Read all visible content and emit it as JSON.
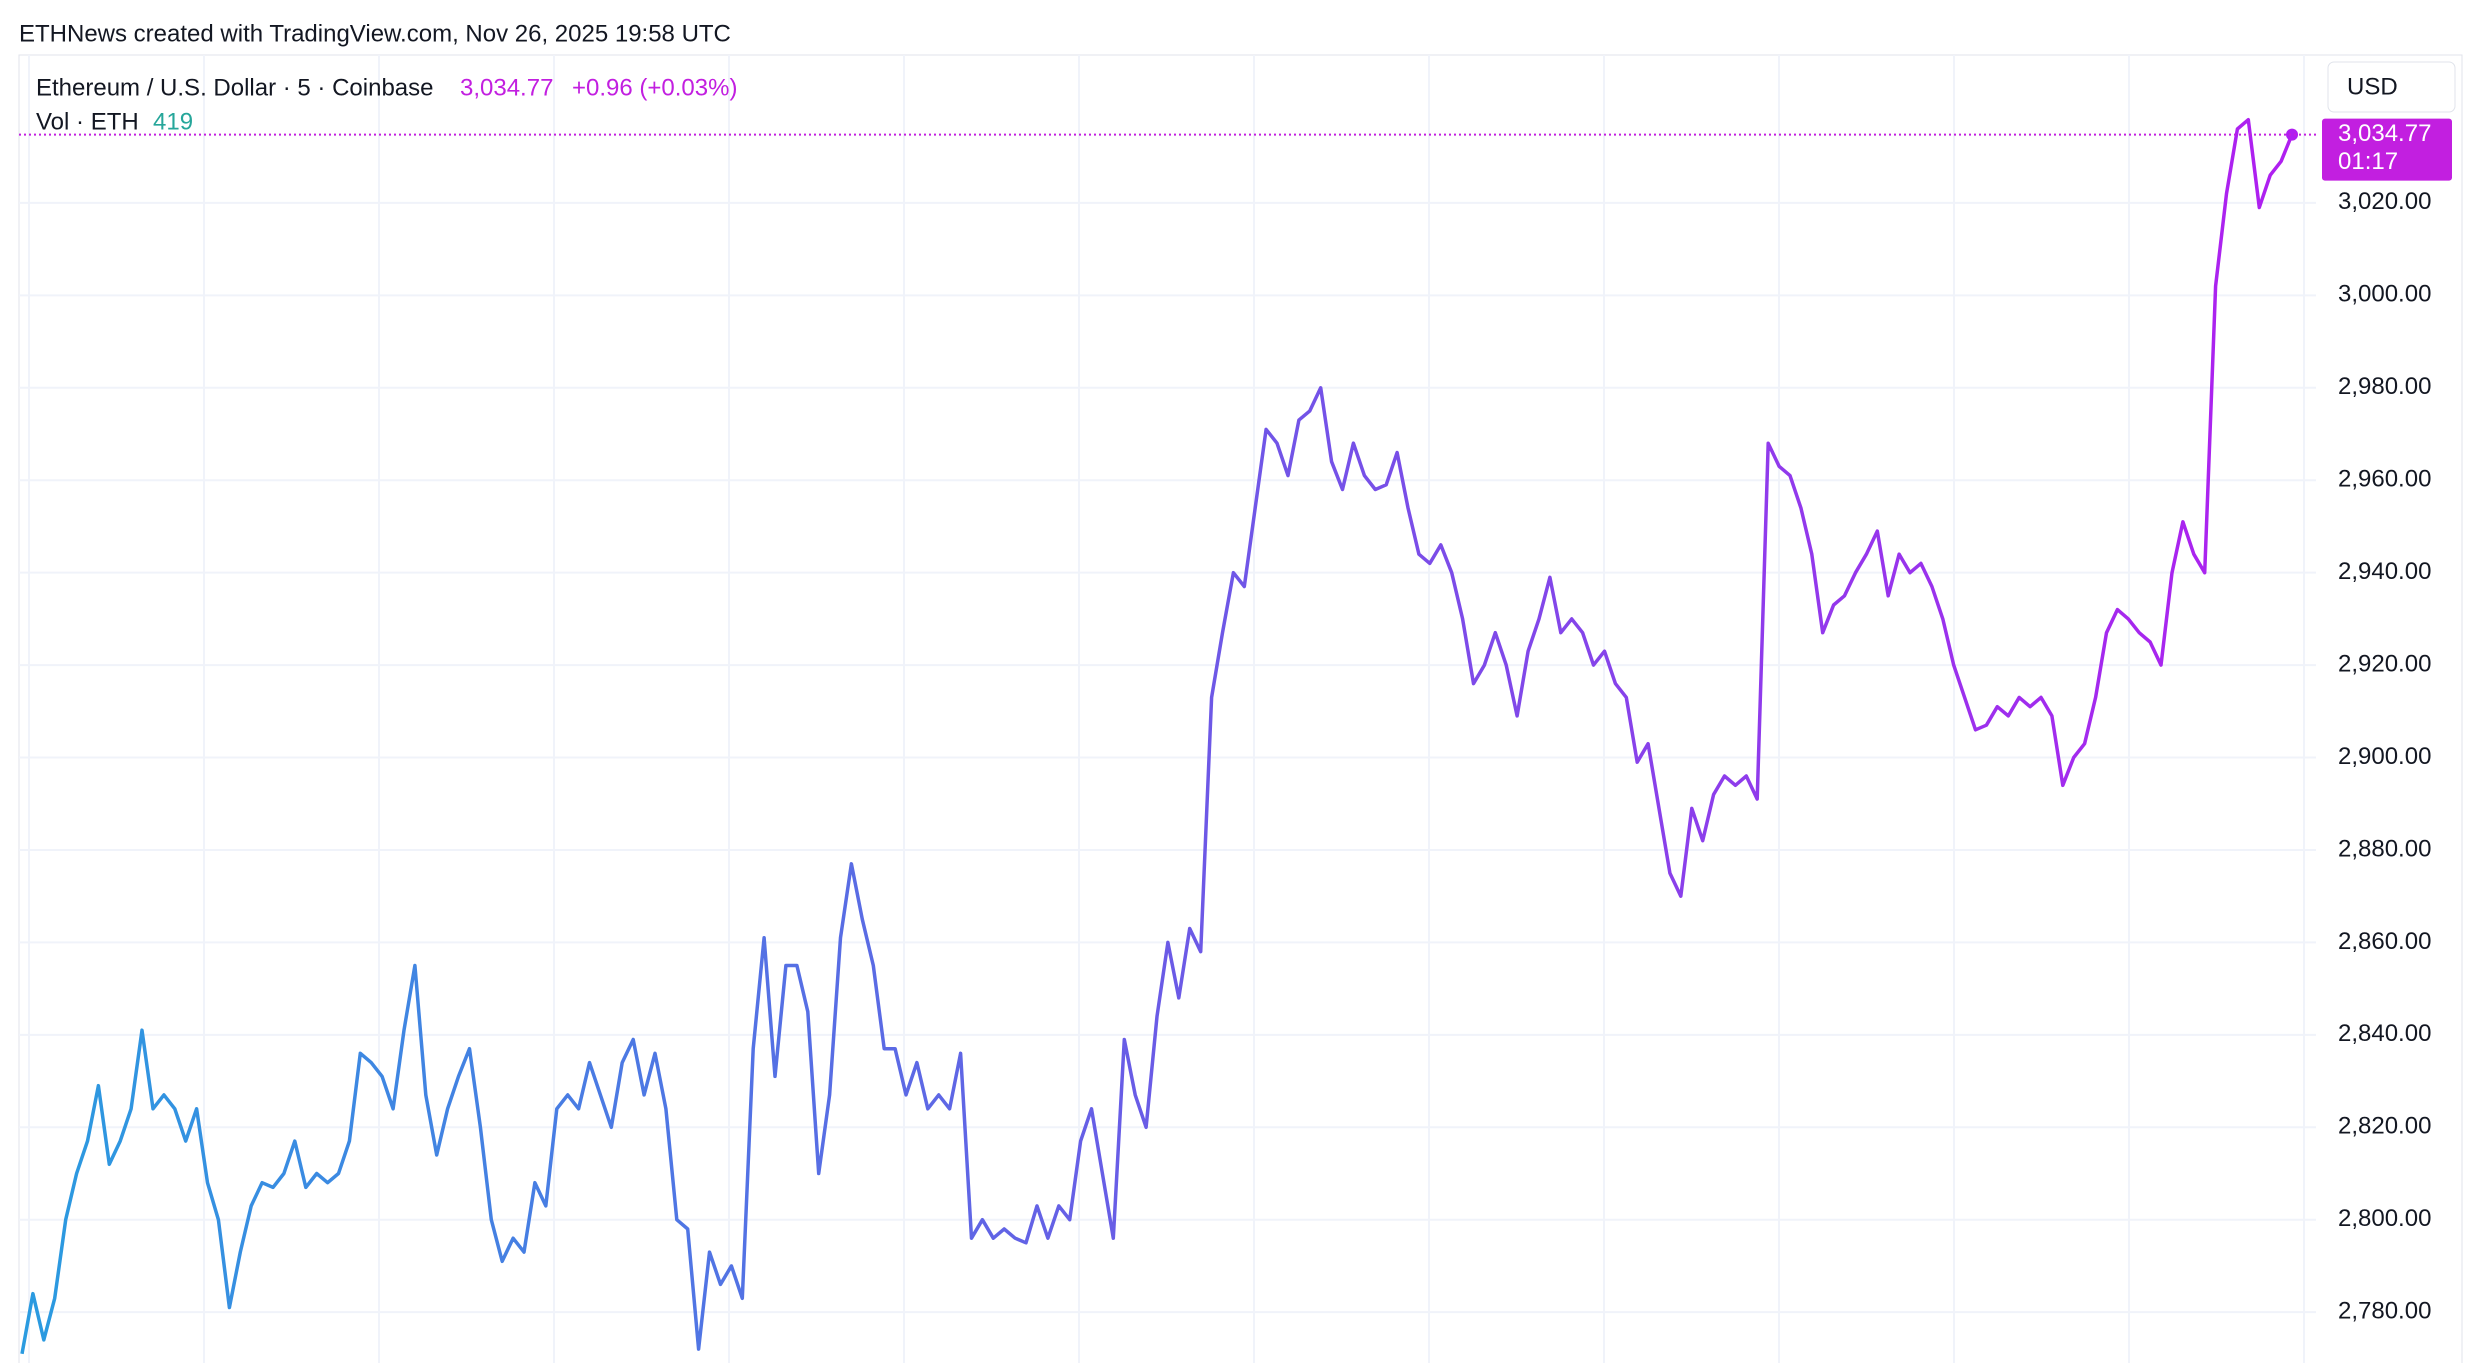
{
  "chart_data": {
    "type": "line",
    "title": "ETHNews created with TradingView.com, Nov 26, 2025 19:58 UTC",
    "symbol": "Ethereum / U.S. Dollar · 5 · Coinbase",
    "change": "+0.96 (+0.03%)",
    "volume_label": "Vol · ETH",
    "volume": 419,
    "currency": "USD",
    "countdown": "01:17",
    "last": {
      "value": 3034.77,
      "label": "3,034.77"
    },
    "colors": [
      "#2a9be0",
      "#6a5be6",
      "#b01ff0"
    ],
    "accent": "#c21fe0",
    "volume_color": "#26a69a",
    "grid": true,
    "ylim": [
      2769,
      3052
    ],
    "yticks": [
      {
        "value": 2780,
        "label": "2,780.00"
      },
      {
        "value": 2800,
        "label": "2,800.00"
      },
      {
        "value": 2820,
        "label": "2,820.00"
      },
      {
        "value": 2840,
        "label": "2,840.00"
      },
      {
        "value": 2860,
        "label": "2,860.00"
      },
      {
        "value": 2880,
        "label": "2,880.00"
      },
      {
        "value": 2900,
        "label": "2,900.00"
      },
      {
        "value": 2920,
        "label": "2,920.00"
      },
      {
        "value": 2940,
        "label": "2,940.00"
      },
      {
        "value": 2960,
        "label": "2,960.00"
      },
      {
        "value": 2980,
        "label": "2,980.00"
      },
      {
        "value": 3000,
        "label": "3,000.00"
      },
      {
        "value": 3020,
        "label": "3,020.00"
      }
    ],
    "values": [
      2771,
      2784,
      2774,
      2783,
      2800,
      2810,
      2817,
      2829,
      2812,
      2817,
      2824,
      2841,
      2824,
      2827,
      2824,
      2817,
      2824,
      2808,
      2800,
      2781,
      2793,
      2803,
      2808,
      2807,
      2810,
      2817,
      2807,
      2810,
      2808,
      2810,
      2817,
      2836,
      2834,
      2831,
      2824,
      2841,
      2855,
      2827,
      2814,
      2824,
      2831,
      2837,
      2820,
      2800,
      2791,
      2796,
      2793,
      2808,
      2803,
      2824,
      2827,
      2824,
      2834,
      2827,
      2820,
      2834,
      2839,
      2827,
      2836,
      2824,
      2800,
      2798,
      2772,
      2793,
      2786,
      2790,
      2783,
      2837,
      2861,
      2831,
      2855,
      2855,
      2845,
      2810,
      2827,
      2861,
      2877,
      2865,
      2855,
      2837,
      2837,
      2827,
      2834,
      2824,
      2827,
      2824,
      2836,
      2796,
      2800,
      2796,
      2798,
      2796,
      2795,
      2803,
      2796,
      2803,
      2800,
      2817,
      2824,
      2810,
      2796,
      2839,
      2827,
      2820,
      2844,
      2860,
      2848,
      2863,
      2858,
      2913,
      2927,
      2940,
      2937,
      2954,
      2971,
      2968,
      2961,
      2973,
      2975,
      2980,
      2964,
      2958,
      2968,
      2961,
      2958,
      2959,
      2966,
      2954,
      2944,
      2942,
      2946,
      2940,
      2930,
      2916,
      2920,
      2927,
      2920,
      2909,
      2923,
      2930,
      2939,
      2927,
      2930,
      2927,
      2920,
      2923,
      2916,
      2913,
      2899,
      2903,
      2889,
      2875,
      2870,
      2889,
      2882,
      2892,
      2896,
      2894,
      2896,
      2891,
      2968,
      2963,
      2961,
      2954,
      2944,
      2927,
      2933,
      2935,
      2940,
      2944,
      2949,
      2935,
      2944,
      2940,
      2942,
      2937,
      2930,
      2920,
      2913,
      2906,
      2907,
      2911,
      2909,
      2913,
      2911,
      2913,
      2909,
      2894,
      2900,
      2903,
      2913,
      2927,
      2932,
      2930,
      2927,
      2925,
      2920,
      2940,
      2951,
      2944,
      2940,
      3002,
      3022,
      3036,
      3038,
      3019,
      3026,
      3029,
      3034.77
    ]
  }
}
